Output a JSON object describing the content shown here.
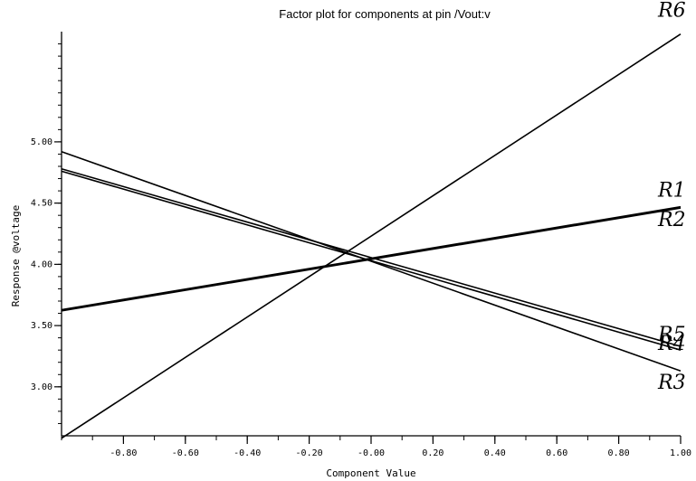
{
  "chart_data": {
    "type": "line",
    "title": "Factor plot for components at pin /Vout:v",
    "xlabel": "Component  Value",
    "ylabel": "Response  @voltage",
    "xlim": [
      -1.0,
      1.0
    ],
    "ylim": [
      2.6,
      5.9
    ],
    "x_ticks": [
      {
        "value": -0.8,
        "label": "-0.80"
      },
      {
        "value": -0.6,
        "label": "-0.60"
      },
      {
        "value": -0.4,
        "label": "-0.40"
      },
      {
        "value": -0.2,
        "label": "-0.20"
      },
      {
        "value": 0.0,
        "label": "-0.00"
      },
      {
        "value": 0.2,
        "label": "0.20"
      },
      {
        "value": 0.4,
        "label": "0.40"
      },
      {
        "value": 0.6,
        "label": "0.60"
      },
      {
        "value": 0.8,
        "label": "0.80"
      },
      {
        "value": 1.0,
        "label": "1.00"
      }
    ],
    "y_ticks": [
      {
        "value": 3.0,
        "label": "3.00"
      },
      {
        "value": 3.5,
        "label": "3.50"
      },
      {
        "value": 4.0,
        "label": "4.00"
      },
      {
        "value": 4.5,
        "label": "4.50"
      },
      {
        "value": 5.0,
        "label": "5.00"
      }
    ],
    "grid": false,
    "series": [
      {
        "name": "R6",
        "x": [
          -1.0,
          1.0
        ],
        "y": [
          2.58,
          5.88
        ]
      },
      {
        "name": "R1",
        "x": [
          -1.0,
          1.0
        ],
        "y": [
          3.63,
          4.47
        ]
      },
      {
        "name": "R2",
        "x": [
          -1.0,
          1.0
        ],
        "y": [
          3.62,
          4.46
        ]
      },
      {
        "name": "R5",
        "x": [
          -1.0,
          1.0
        ],
        "y": [
          4.78,
          3.33
        ]
      },
      {
        "name": "R4",
        "x": [
          -1.0,
          1.0
        ],
        "y": [
          4.76,
          3.3
        ]
      },
      {
        "name": "R3",
        "x": [
          -1.0,
          1.0
        ],
        "y": [
          4.92,
          3.13
        ]
      }
    ]
  }
}
